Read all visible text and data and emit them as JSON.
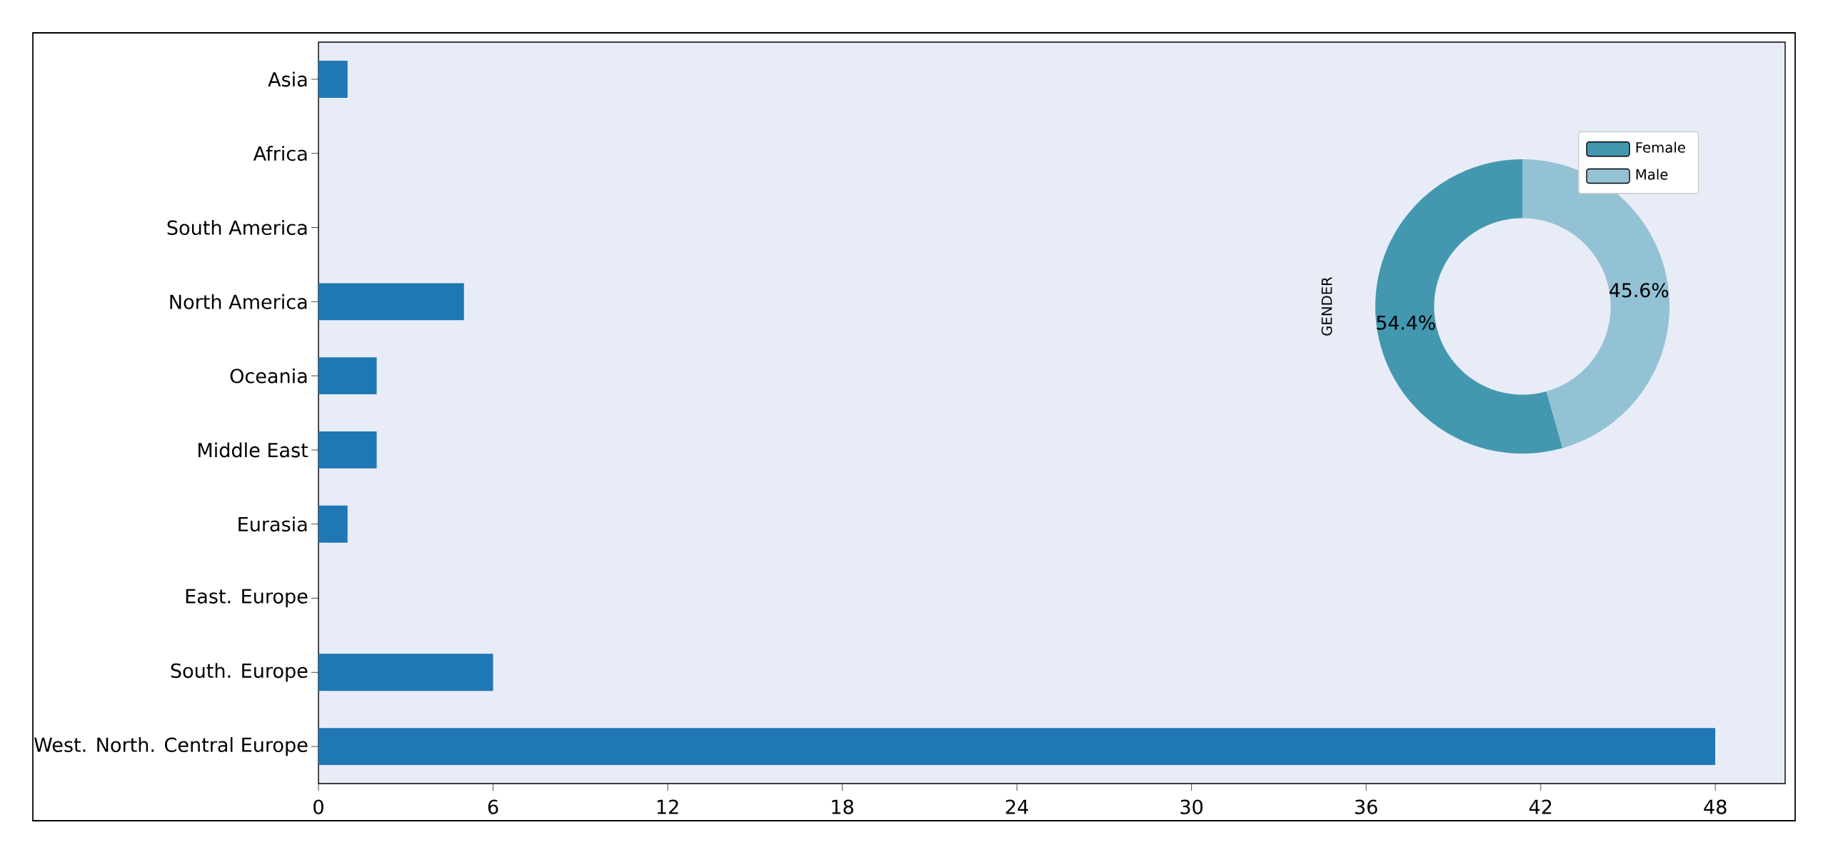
{
  "chart_data": [
    {
      "type": "bar",
      "orientation": "horizontal",
      "categories": [
        "Asia",
        "Africa",
        "South America",
        "North America",
        "Oceania",
        "Middle East",
        "Eurasia",
        "East. Europe",
        "South. Europe",
        "West. North. Central Europe"
      ],
      "values": [
        1,
        0,
        0,
        5,
        2,
        2,
        1,
        0,
        6,
        48
      ],
      "color": "#1f77b4",
      "xlim": [
        0,
        50.4
      ],
      "xticks": [
        0,
        6,
        12,
        18,
        24,
        30,
        36,
        42,
        48
      ]
    },
    {
      "type": "donut",
      "ylabel": "GENDER",
      "categories": [
        "Female",
        "Male"
      ],
      "values": [
        54.4,
        45.6
      ],
      "colors": [
        "#4398b0",
        "#93c2d4"
      ],
      "value_labels": [
        "54.4%",
        "45.6%"
      ],
      "legend": "top right"
    }
  ]
}
